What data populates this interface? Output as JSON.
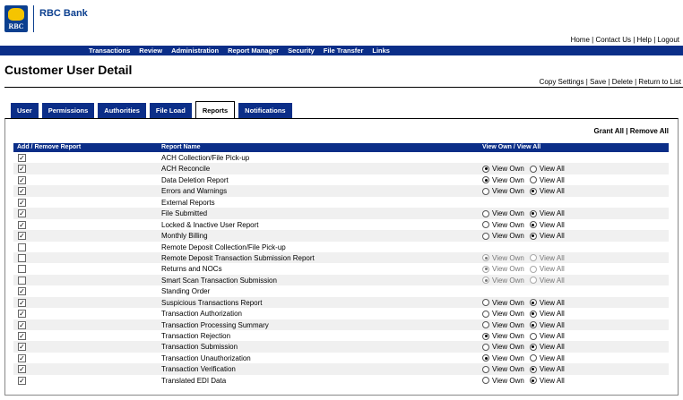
{
  "header": {
    "bank_name": "RBC Bank",
    "logo_text": "RBC",
    "top_links": [
      "Home",
      "Contact Us",
      "Help",
      "Logout"
    ]
  },
  "nav": [
    "Transactions",
    "Review",
    "Administration",
    "Report Manager",
    "Security",
    "File Transfer",
    "Links"
  ],
  "page": {
    "title": "Customer User Detail",
    "actions": [
      "Copy Settings",
      "Save",
      "Delete",
      "Return to List"
    ]
  },
  "tabs": [
    {
      "label": "User",
      "active": false
    },
    {
      "label": "Permissions",
      "active": false
    },
    {
      "label": "Authorities",
      "active": false
    },
    {
      "label": "File Load",
      "active": false
    },
    {
      "label": "Reports",
      "active": true
    },
    {
      "label": "Notifications",
      "active": false
    }
  ],
  "grant": {
    "grant_all": "Grant All",
    "remove_all": "Remove All"
  },
  "table": {
    "headers": {
      "add_remove": "Add / Remove Report",
      "name": "Report Name",
      "view": "View Own / View All"
    },
    "view_own_label": "View Own",
    "view_all_label": "View All",
    "rows": [
      {
        "checked": true,
        "name": "ACH Collection/File Pick-up",
        "view": null,
        "disabled": false
      },
      {
        "checked": true,
        "name": "ACH Reconcile",
        "view": "own",
        "disabled": false
      },
      {
        "checked": true,
        "name": "Data Deletion Report",
        "view": "own",
        "disabled": false
      },
      {
        "checked": true,
        "name": "Errors and Warnings",
        "view": "all",
        "disabled": false
      },
      {
        "checked": true,
        "name": "External Reports",
        "view": null,
        "disabled": false
      },
      {
        "checked": true,
        "name": "File Submitted",
        "view": "all",
        "disabled": false
      },
      {
        "checked": true,
        "name": "Locked & Inactive User Report",
        "view": "all",
        "disabled": false
      },
      {
        "checked": true,
        "name": "Monthly Billing",
        "view": "all",
        "disabled": false
      },
      {
        "checked": false,
        "name": "Remote Deposit Collection/File Pick-up",
        "view": null,
        "disabled": false
      },
      {
        "checked": false,
        "name": "Remote Deposit Transaction Submission Report",
        "view": "own",
        "disabled": true
      },
      {
        "checked": false,
        "name": "Returns and NOCs",
        "view": "own",
        "disabled": true
      },
      {
        "checked": false,
        "name": "Smart Scan Transaction Submission",
        "view": "own",
        "disabled": true
      },
      {
        "checked": true,
        "name": "Standing Order",
        "view": null,
        "disabled": false
      },
      {
        "checked": true,
        "name": "Suspicious Transactions Report",
        "view": "all",
        "disabled": false
      },
      {
        "checked": true,
        "name": "Transaction Authorization",
        "view": "all",
        "disabled": false
      },
      {
        "checked": true,
        "name": "Transaction Processing Summary",
        "view": "all",
        "disabled": false
      },
      {
        "checked": true,
        "name": "Transaction Rejection",
        "view": "own",
        "disabled": false
      },
      {
        "checked": true,
        "name": "Transaction Submission",
        "view": "all",
        "disabled": false
      },
      {
        "checked": true,
        "name": "Transaction Unauthorization",
        "view": "own",
        "disabled": false
      },
      {
        "checked": true,
        "name": "Transaction Verification",
        "view": "all",
        "disabled": false
      },
      {
        "checked": true,
        "name": "Translated EDI Data",
        "view": "all",
        "disabled": false
      }
    ]
  }
}
